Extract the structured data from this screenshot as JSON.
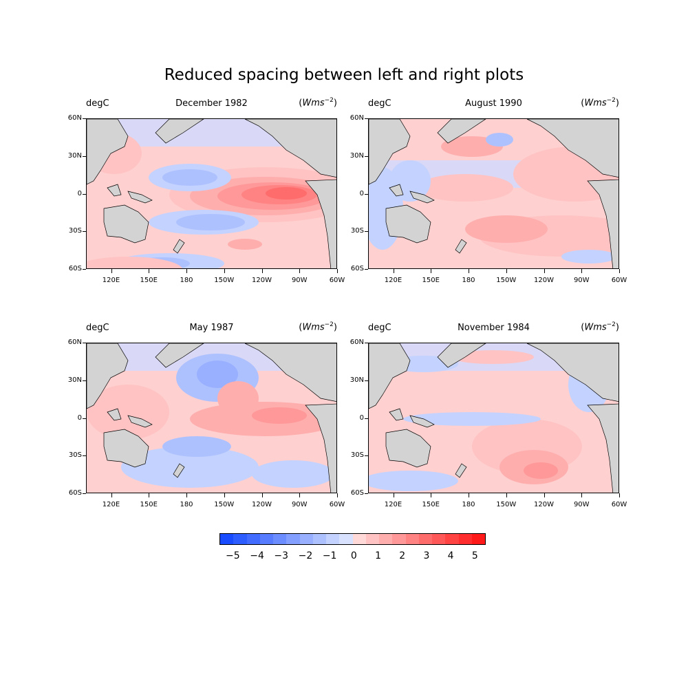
{
  "figure": {
    "title": "Reduced spacing between left and right plots"
  },
  "panels": [
    {
      "left_label": "degC",
      "center_label": "December 1982",
      "right_label_prefix": "(",
      "right_label_var": "Wms",
      "right_label_exp": "−2",
      "right_label_suffix": ")"
    },
    {
      "left_label": "degC",
      "center_label": "August 1990",
      "right_label_prefix": "(",
      "right_label_var": "Wms",
      "right_label_exp": "−2",
      "right_label_suffix": ")"
    },
    {
      "left_label": "degC",
      "center_label": "May 1987",
      "right_label_prefix": "(",
      "right_label_var": "Wms",
      "right_label_exp": "−2",
      "right_label_suffix": ")"
    },
    {
      "left_label": "degC",
      "center_label": "November 1984",
      "right_label_prefix": "(",
      "right_label_var": "Wms",
      "right_label_exp": "−2",
      "right_label_suffix": ")"
    }
  ],
  "axes": {
    "lat_ticks": [
      "60N",
      "30N",
      "0",
      "30S",
      "60S"
    ],
    "lon_ticks": [
      "120E",
      "150E",
      "180",
      "150W",
      "120W",
      "90W",
      "60W"
    ]
  },
  "colorbar": {
    "ticks": [
      "−5",
      "−4",
      "−3",
      "−2",
      "−1",
      "0",
      "1",
      "2",
      "3",
      "4",
      "5"
    ],
    "colors": [
      "#1a4cff",
      "#2d5cff",
      "#426cff",
      "#587cff",
      "#6c8dff",
      "#839fff",
      "#98b0ff",
      "#aec1ff",
      "#c3d2ff",
      "#d8e2ff",
      "#ffd8d8",
      "#ffc3c3",
      "#ffaeae",
      "#ff9898",
      "#ff8383",
      "#ff6c6c",
      "#ff5858",
      "#ff4242",
      "#ff2d2d",
      "#ff1a1a"
    ]
  },
  "colors": {
    "land": "#d3d3d3",
    "neutral_positive": "#ffd0d0",
    "neutral_negative": "#cfd9ff"
  }
}
